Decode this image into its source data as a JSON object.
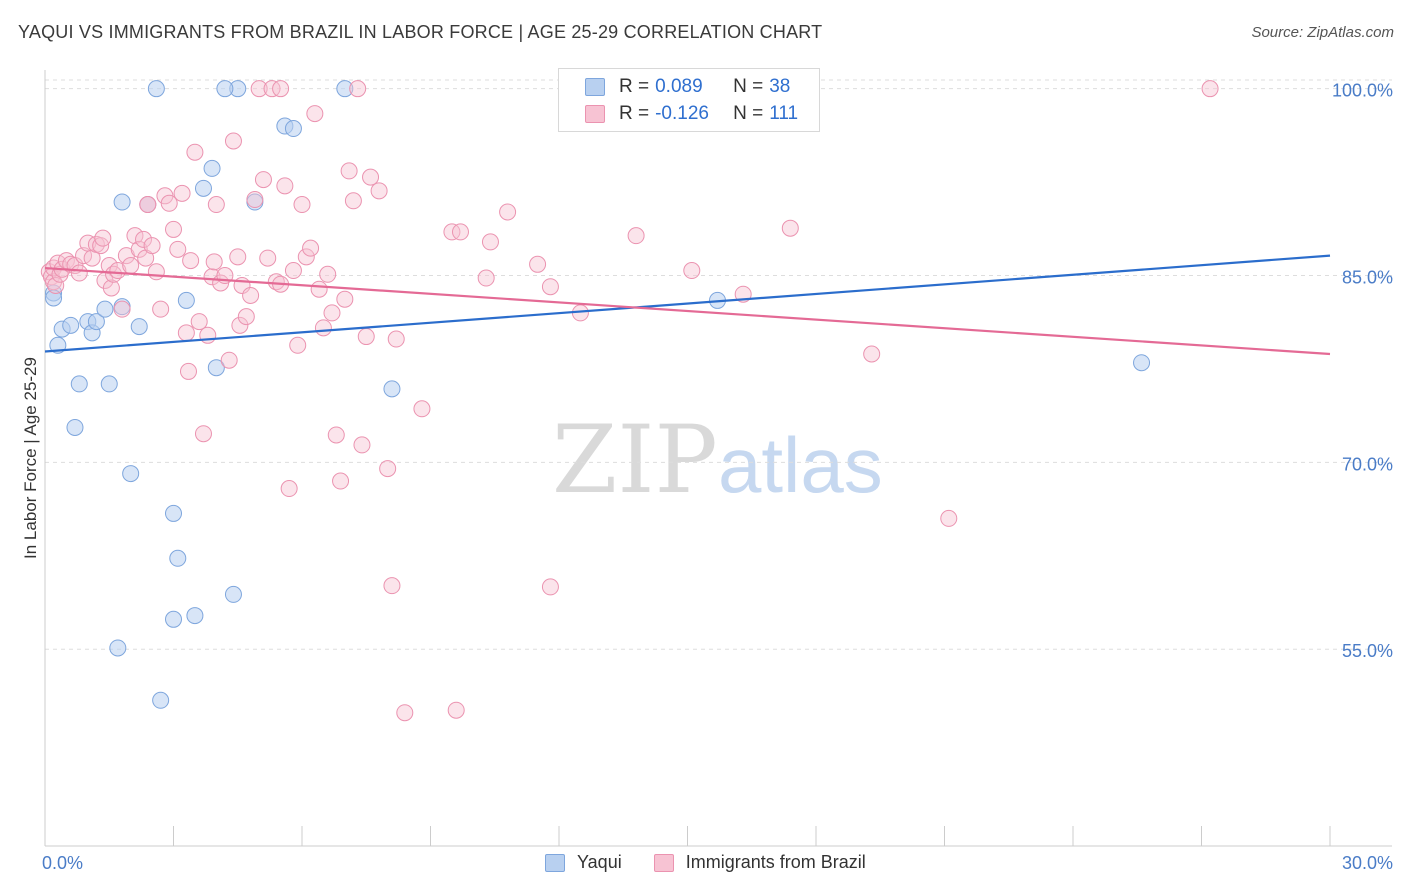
{
  "title": "YAQUI VS IMMIGRANTS FROM BRAZIL IN LABOR FORCE | AGE 25-29 CORRELATION CHART",
  "source": "Source: ZipAtlas.com",
  "watermark": {
    "zip": "ZIP",
    "atlas": "atlas"
  },
  "legend": {
    "rows": [
      {
        "r_label": "R =",
        "r_value": "0.089",
        "n_label": "N =",
        "n_value": "38"
      },
      {
        "r_label": "R =",
        "r_value": "-0.126",
        "n_label": "N =",
        "n_value": "111"
      }
    ]
  },
  "bottom_legend": [
    "Yaqui",
    "Immigrants from Brazil"
  ],
  "colors": {
    "blue_fill": "#b8d0f0",
    "blue_stroke": "#7ea6dd",
    "blue_line": "#2b6dcc",
    "pink_fill": "#f7c3d3",
    "pink_stroke": "#eb93b0",
    "pink_line": "#e46a95",
    "tick_text": "#4a7cc7",
    "grid": "#dddddd"
  },
  "chart_data": {
    "type": "scatter",
    "title": "YAQUI VS IMMIGRANTS FROM BRAZIL IN LABOR FORCE | AGE 25-29 CORRELATION CHART",
    "xlabel": "",
    "ylabel": "In Labor Force | Age 25-29",
    "xlim": [
      0,
      30
    ],
    "ylim": [
      39.2,
      101.5
    ],
    "x_tick_labels": [
      "0.0%",
      "30.0%"
    ],
    "y_ticks": [
      55,
      70,
      85,
      100
    ],
    "y_tick_labels": [
      "55.0%",
      "70.0%",
      "85.0%",
      "100.0%"
    ],
    "grid": true,
    "series": [
      {
        "name": "Yaqui",
        "trend": {
          "x": [
            0,
            30
          ],
          "y": [
            78.9,
            86.6
          ]
        },
        "points": [
          [
            0.2,
            83.6
          ],
          [
            0.2,
            83.2
          ],
          [
            0.3,
            79.4
          ],
          [
            0.4,
            80.7
          ],
          [
            0.6,
            81.0
          ],
          [
            0.8,
            76.3
          ],
          [
            0.7,
            72.8
          ],
          [
            1.0,
            81.3
          ],
          [
            1.1,
            80.4
          ],
          [
            1.2,
            81.3
          ],
          [
            1.4,
            82.3
          ],
          [
            1.5,
            76.3
          ],
          [
            1.8,
            82.5
          ],
          [
            1.8,
            90.9
          ],
          [
            1.7,
            55.1
          ],
          [
            2.0,
            69.1
          ],
          [
            2.2,
            80.9
          ],
          [
            2.4,
            90.7
          ],
          [
            2.6,
            100.0
          ],
          [
            2.7,
            50.9
          ],
          [
            3.0,
            65.9
          ],
          [
            3.1,
            62.3
          ],
          [
            3.0,
            57.4
          ],
          [
            3.3,
            83.0
          ],
          [
            3.5,
            57.7
          ],
          [
            3.7,
            92.0
          ],
          [
            3.9,
            93.6
          ],
          [
            4.0,
            77.6
          ],
          [
            4.4,
            59.4
          ],
          [
            4.5,
            100.0
          ],
          [
            4.9,
            90.9
          ],
          [
            5.6,
            97.0
          ],
          [
            5.8,
            96.8
          ],
          [
            7.0,
            100.0
          ],
          [
            8.1,
            75.9
          ],
          [
            15.7,
            83.0
          ],
          [
            25.6,
            78.0
          ],
          [
            4.2,
            100.0
          ]
        ]
      },
      {
        "name": "Immigrants from Brazil",
        "trend": {
          "x": [
            0,
            30
          ],
          "y": [
            85.6,
            78.7
          ]
        },
        "points": [
          [
            0.1,
            85.3
          ],
          [
            0.15,
            84.9
          ],
          [
            0.2,
            84.5
          ],
          [
            0.2,
            85.6
          ],
          [
            0.25,
            84.2
          ],
          [
            0.3,
            86.0
          ],
          [
            0.35,
            85.1
          ],
          [
            0.4,
            85.5
          ],
          [
            0.5,
            86.2
          ],
          [
            0.6,
            85.9
          ],
          [
            0.7,
            85.8
          ],
          [
            0.8,
            85.2
          ],
          [
            0.9,
            86.6
          ],
          [
            1.0,
            87.6
          ],
          [
            1.1,
            86.4
          ],
          [
            1.2,
            87.5
          ],
          [
            1.3,
            87.4
          ],
          [
            1.35,
            88.0
          ],
          [
            1.4,
            84.6
          ],
          [
            1.5,
            85.8
          ],
          [
            1.55,
            84.0
          ],
          [
            1.6,
            85.1
          ],
          [
            1.7,
            85.4
          ],
          [
            1.8,
            82.3
          ],
          [
            1.9,
            86.6
          ],
          [
            2.0,
            85.8
          ],
          [
            2.1,
            88.2
          ],
          [
            2.2,
            87.1
          ],
          [
            2.3,
            87.9
          ],
          [
            2.35,
            86.4
          ],
          [
            2.4,
            90.7
          ],
          [
            2.5,
            87.4
          ],
          [
            2.6,
            85.3
          ],
          [
            2.7,
            82.3
          ],
          [
            2.8,
            91.4
          ],
          [
            2.9,
            90.8
          ],
          [
            3.0,
            88.7
          ],
          [
            3.1,
            87.1
          ],
          [
            3.2,
            91.6
          ],
          [
            3.3,
            80.4
          ],
          [
            3.35,
            77.3
          ],
          [
            3.4,
            86.2
          ],
          [
            3.5,
            94.9
          ],
          [
            3.6,
            81.3
          ],
          [
            3.7,
            72.3
          ],
          [
            3.8,
            80.2
          ],
          [
            3.9,
            84.9
          ],
          [
            3.95,
            86.1
          ],
          [
            4.0,
            90.7
          ],
          [
            4.1,
            84.4
          ],
          [
            4.2,
            85.0
          ],
          [
            4.3,
            78.2
          ],
          [
            4.4,
            95.8
          ],
          [
            4.5,
            86.5
          ],
          [
            4.55,
            81.0
          ],
          [
            4.6,
            84.2
          ],
          [
            4.7,
            81.7
          ],
          [
            4.8,
            83.4
          ],
          [
            4.9,
            91.1
          ],
          [
            5.0,
            100.0
          ],
          [
            5.1,
            92.7
          ],
          [
            5.2,
            86.4
          ],
          [
            5.3,
            100.0
          ],
          [
            5.4,
            84.5
          ],
          [
            5.5,
            84.3
          ],
          [
            5.6,
            92.2
          ],
          [
            5.7,
            67.9
          ],
          [
            5.8,
            85.4
          ],
          [
            5.9,
            79.4
          ],
          [
            6.0,
            90.7
          ],
          [
            6.1,
            86.5
          ],
          [
            6.2,
            87.2
          ],
          [
            6.3,
            98.0
          ],
          [
            6.4,
            83.9
          ],
          [
            6.5,
            80.8
          ],
          [
            6.6,
            85.1
          ],
          [
            6.7,
            82.0
          ],
          [
            6.8,
            72.2
          ],
          [
            6.9,
            68.5
          ],
          [
            7.0,
            83.1
          ],
          [
            7.1,
            93.4
          ],
          [
            7.2,
            91.0
          ],
          [
            7.3,
            100.0
          ],
          [
            7.4,
            71.4
          ],
          [
            7.5,
            80.1
          ],
          [
            7.6,
            92.9
          ],
          [
            7.8,
            91.8
          ],
          [
            8.0,
            69.5
          ],
          [
            8.1,
            60.1
          ],
          [
            8.2,
            79.9
          ],
          [
            8.4,
            49.9
          ],
          [
            8.8,
            74.3
          ],
          [
            9.5,
            88.5
          ],
          [
            9.6,
            50.1
          ],
          [
            9.7,
            88.5
          ],
          [
            10.3,
            84.8
          ],
          [
            10.4,
            87.7
          ],
          [
            10.8,
            90.1
          ],
          [
            11.5,
            85.9
          ],
          [
            11.8,
            84.1
          ],
          [
            11.8,
            60.0
          ],
          [
            12.5,
            82.0
          ],
          [
            13.8,
            88.2
          ],
          [
            15.1,
            85.4
          ],
          [
            16.3,
            83.5
          ],
          [
            17.4,
            88.8
          ],
          [
            19.3,
            78.7
          ],
          [
            21.1,
            65.5
          ],
          [
            27.2,
            100.0
          ],
          [
            5.5,
            100.0
          ],
          [
            2.4,
            90.7
          ]
        ]
      }
    ]
  }
}
